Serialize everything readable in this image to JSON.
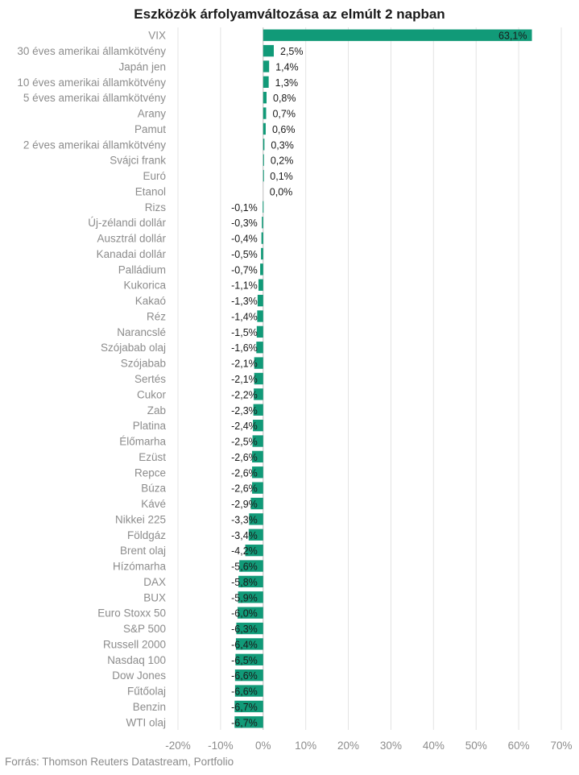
{
  "chart_data": {
    "type": "bar",
    "orientation": "horizontal",
    "title": "Eszközök árfolyamváltozása az elmúlt 2 napban",
    "categories": [
      "VIX",
      "30 éves amerikai államkötvény",
      "Japán jen",
      "10 éves amerikai államkötvény",
      "5 éves amerikai államkötvény",
      "Arany",
      "Pamut",
      "2 éves amerikai államkötvény",
      "Svájci frank",
      "Euró",
      "Etanol",
      "Rizs",
      "Új-zélandi dollár",
      "Ausztrál dollár",
      "Kanadai dollár",
      "Palládium",
      "Kukorica",
      "Kakaó",
      "Réz",
      "Narancslé",
      "Szójabab olaj",
      "Szójabab",
      "Sertés",
      "Cukor",
      "Zab",
      "Platina",
      "Élőmarha",
      "Ezüst",
      "Repce",
      "Búza",
      "Kávé",
      "Nikkei 225",
      "Földgáz",
      "Brent olaj",
      "Hízómarha",
      "DAX",
      "BUX",
      "Euro Stoxx 50",
      "S&P 500 ",
      "Russell 2000",
      "Nasdaq 100",
      "Dow Jones ",
      "Fűtőolaj",
      "Benzin",
      "WTI olaj"
    ],
    "values": [
      63.1,
      2.5,
      1.4,
      1.3,
      0.8,
      0.7,
      0.6,
      0.3,
      0.2,
      0.1,
      0.0,
      -0.1,
      -0.3,
      -0.4,
      -0.5,
      -0.7,
      -1.1,
      -1.3,
      -1.4,
      -1.5,
      -1.6,
      -2.1,
      -2.1,
      -2.2,
      -2.3,
      -2.4,
      -2.5,
      -2.6,
      -2.6,
      -2.6,
      -2.9,
      -3.3,
      -3.4,
      -4.2,
      -5.6,
      -5.8,
      -5.9,
      -6.0,
      -6.3,
      -6.4,
      -6.5,
      -6.6,
      -6.6,
      -6.7,
      -6.7
    ],
    "value_labels": [
      "63,1%",
      "2,5%",
      "1,4%",
      "1,3%",
      "0,8%",
      "0,7%",
      "0,6%",
      "0,3%",
      "0,2%",
      "0,1%",
      "0,0%",
      "-0,1%",
      "-0,3%",
      "-0,4%",
      "-0,5%",
      "-0,7%",
      "-1,1%",
      "-1,3%",
      "-1,4%",
      "-1,5%",
      "-1,6%",
      "-2,1%",
      "-2,1%",
      "-2,2%",
      "-2,3%",
      "-2,4%",
      "-2,5%",
      "-2,6%",
      "-2,6%",
      "-2,6%",
      "-2,9%",
      "-3,3%",
      "-3,4%",
      "-4,2%",
      "-5,6%",
      "-5,8%",
      "-5,9%",
      "-6,0%",
      "-6,3%",
      "-6,4%",
      "-6,5%",
      "-6,6%",
      "-6,6%",
      "-6,7%",
      "-6,7%"
    ],
    "x_ticks": [
      -20,
      -10,
      0,
      10,
      20,
      30,
      40,
      50,
      60,
      70
    ],
    "x_tick_labels": [
      "-20%",
      "-10%",
      "0%",
      "10%",
      "20%",
      "30%",
      "40%",
      "50%",
      "60%",
      "70%"
    ],
    "xlim": [
      -20,
      70
    ],
    "xlabel": "",
    "ylabel": "",
    "grid": true,
    "bar_color": "#119a78"
  },
  "source": "Forrás: Thomson Reuters Datastream, Portfolio"
}
